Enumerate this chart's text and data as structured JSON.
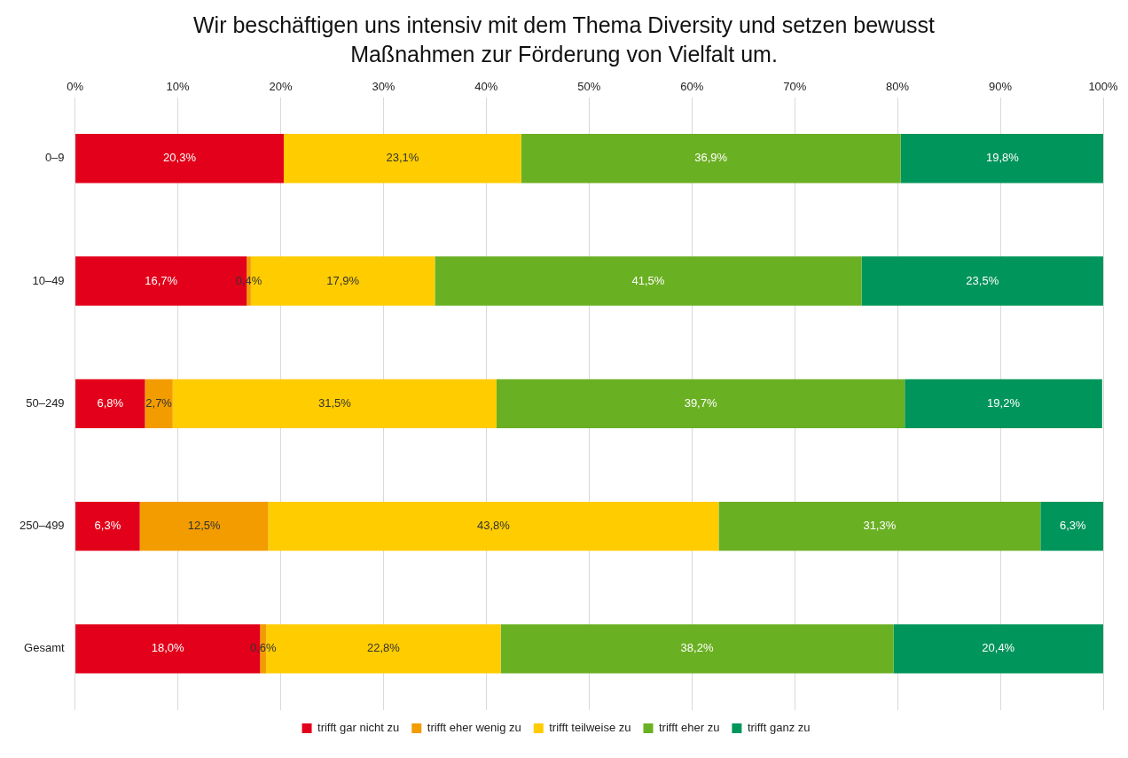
{
  "chart_data": {
    "type": "bar",
    "orientation": "horizontal",
    "stacked": true,
    "title": "Wir beschäftigen uns intensiv mit dem Thema Diversity und setzen bewusst Maßnahmen zur Förderung von Vielfalt um.",
    "categories": [
      "0–9",
      "10–49",
      "50–249",
      "250–499",
      "Gesamt"
    ],
    "series": [
      {
        "name": "trifft gar nicht zu",
        "color": "#e2001a",
        "values": [
          20.3,
          16.7,
          6.8,
          6.3,
          18.0
        ],
        "value_labels": [
          "20,3%",
          "16,7%",
          "6,8%",
          "6,3%",
          "18,0%"
        ]
      },
      {
        "name": "trifft eher wenig zu",
        "color": "#f39c00",
        "values": [
          null,
          0.4,
          2.7,
          12.5,
          0.6
        ],
        "value_labels": [
          null,
          "0,4%",
          "2,7%",
          "12,5%",
          "0,6%"
        ]
      },
      {
        "name": "trifft teilweise zu",
        "color": "#ffcc00",
        "values": [
          23.1,
          17.9,
          31.5,
          43.8,
          22.8
        ],
        "value_labels": [
          "23,1%",
          "17,9%",
          "31,5%",
          "43,8%",
          "22,8%"
        ]
      },
      {
        "name": "trifft eher zu",
        "color": "#6ab023",
        "values": [
          36.9,
          41.5,
          39.7,
          31.3,
          38.2
        ],
        "value_labels": [
          "36,9%",
          "41,5%",
          "39,7%",
          "31,3%",
          "38,2%"
        ]
      },
      {
        "name": "trifft ganz zu",
        "color": "#00955a",
        "values": [
          19.8,
          23.5,
          19.2,
          6.3,
          20.4
        ],
        "value_labels": [
          "19,8%",
          "23,5%",
          "19,2%",
          "6,3%",
          "20,4%"
        ]
      }
    ],
    "xlim": [
      0,
      100
    ],
    "xticks": [
      {
        "value": 0,
        "label": "0%"
      },
      {
        "value": 10,
        "label": "10%"
      },
      {
        "value": 20,
        "label": "20%"
      },
      {
        "value": 30,
        "label": "30%"
      },
      {
        "value": 40,
        "label": "40%"
      },
      {
        "value": 50,
        "label": "50%"
      },
      {
        "value": 60,
        "label": "60%"
      },
      {
        "value": 70,
        "label": "70%"
      },
      {
        "value": 80,
        "label": "80%"
      },
      {
        "value": 90,
        "label": "90%"
      },
      {
        "value": 100,
        "label": "100%"
      }
    ],
    "grid": "x",
    "legend": "bottom"
  }
}
